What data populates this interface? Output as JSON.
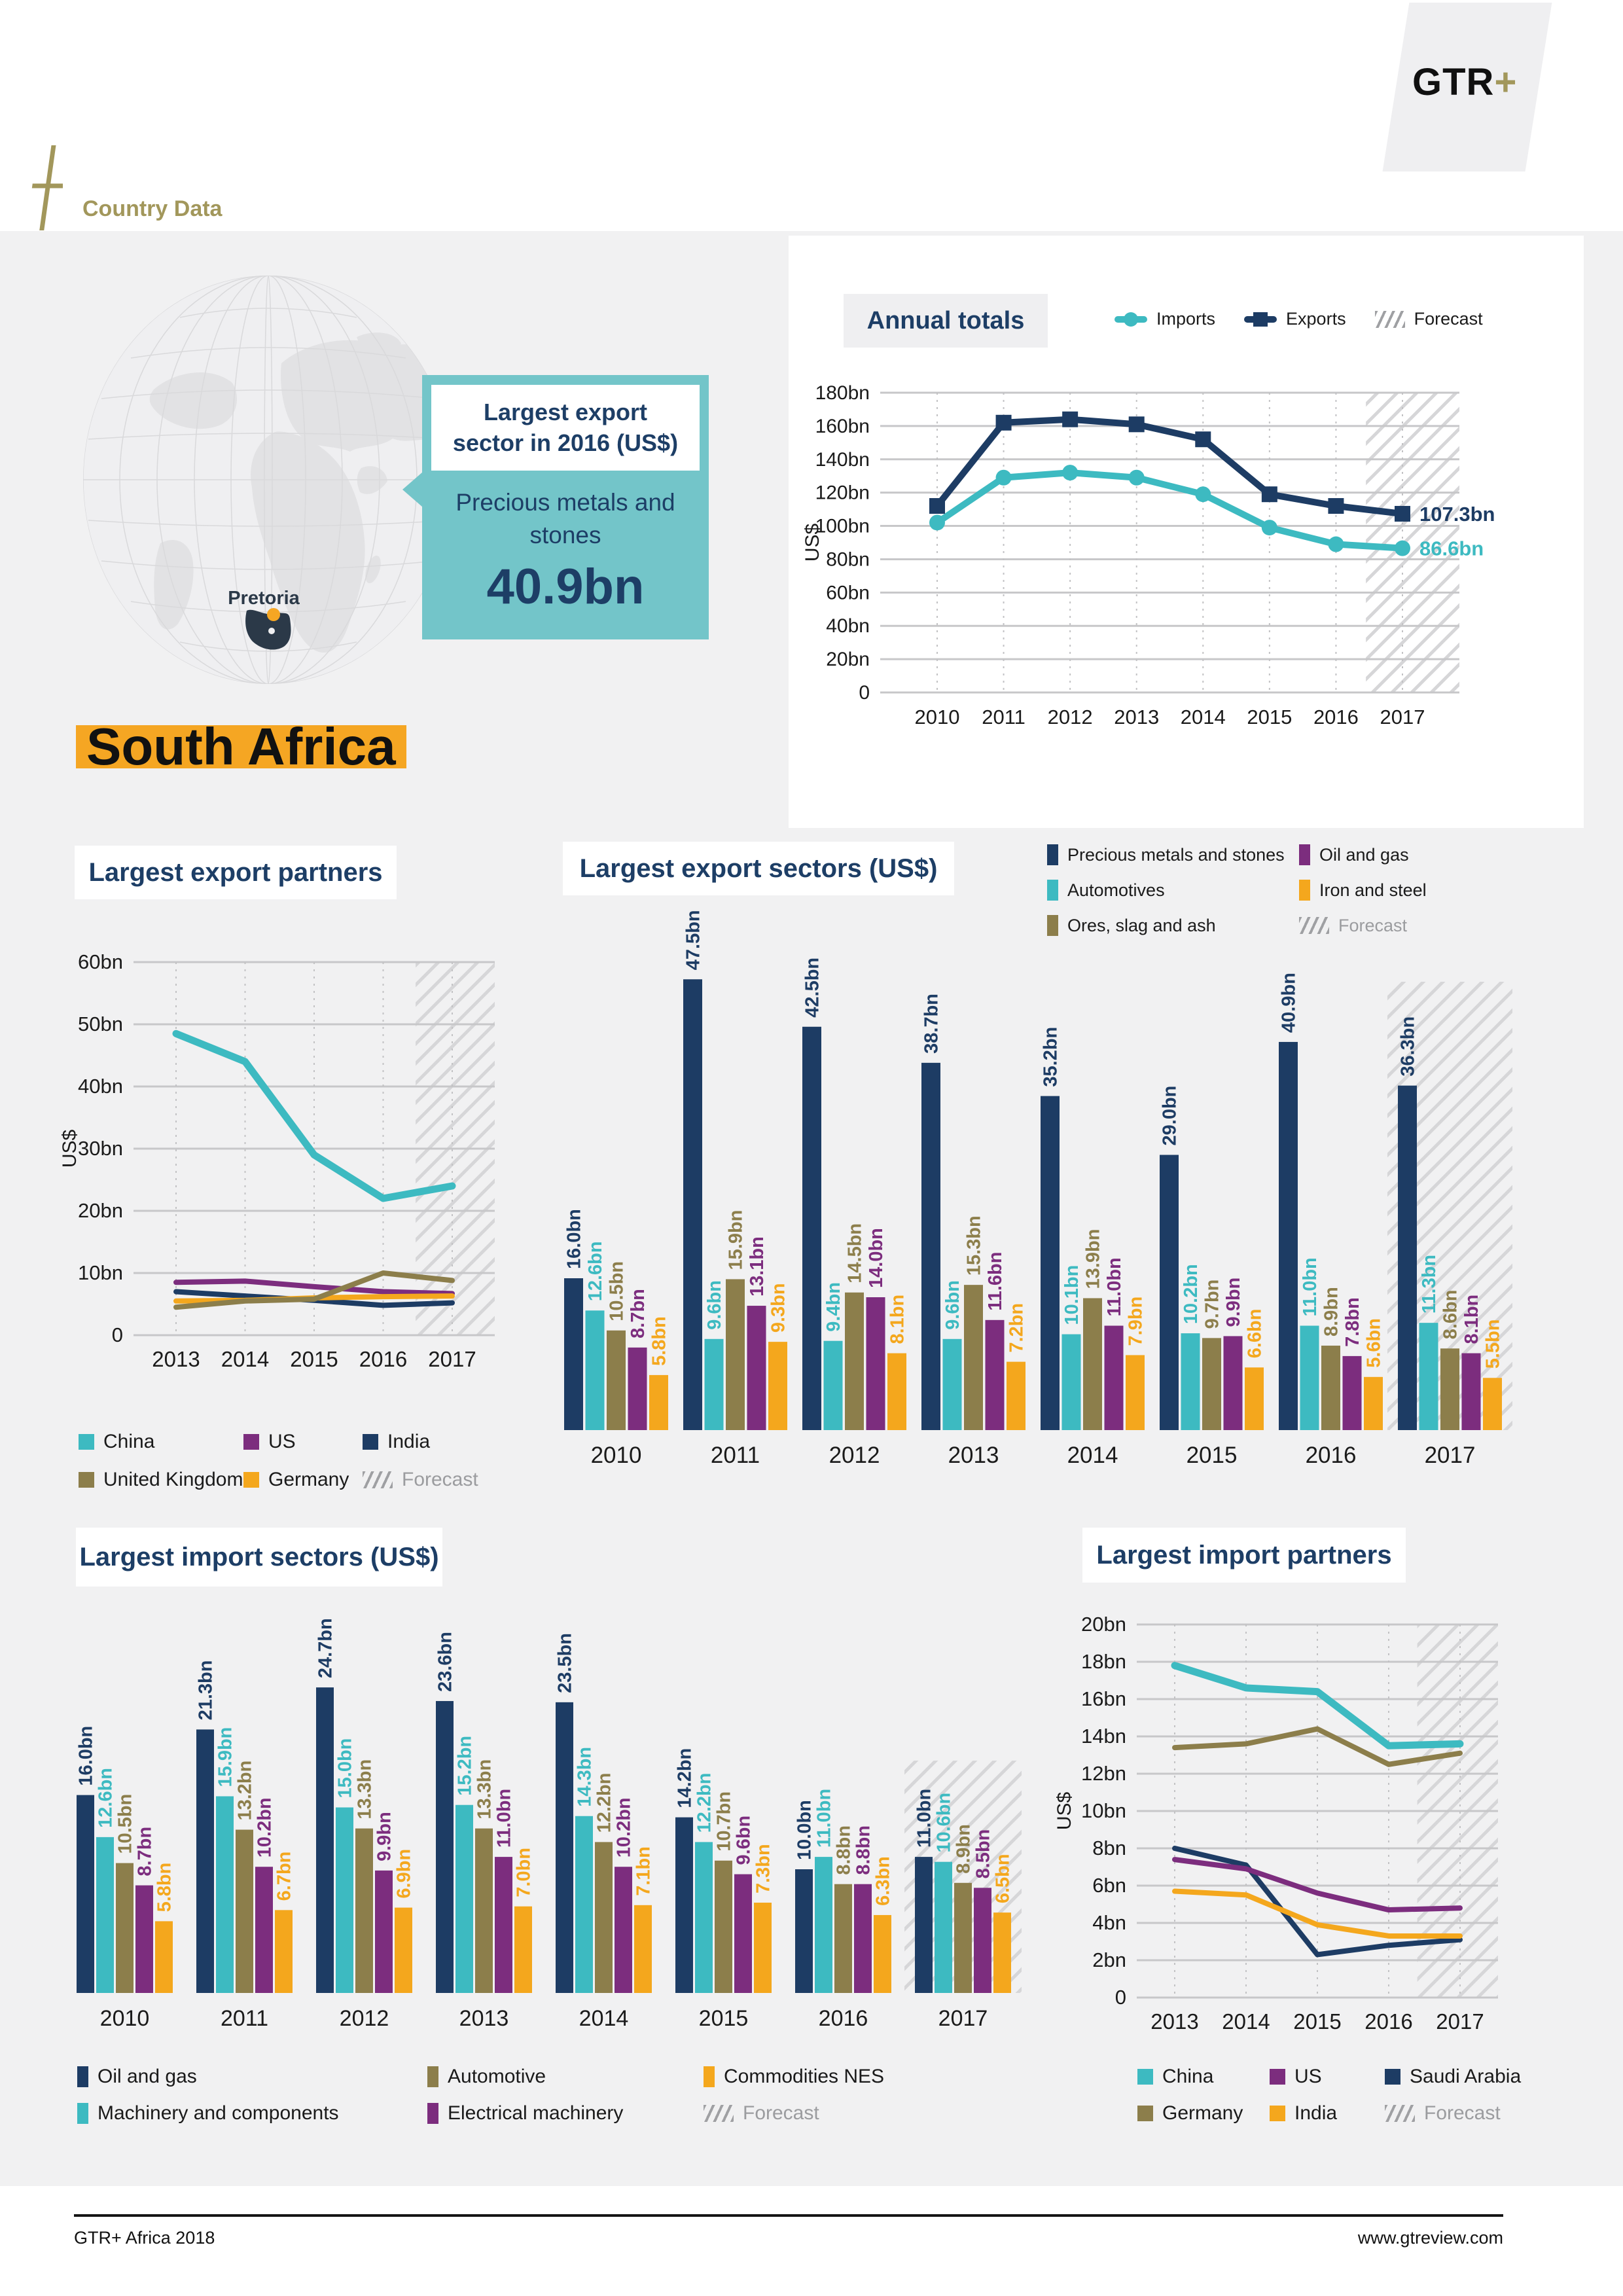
{
  "header": {
    "breadcrumb": "Country Data",
    "logo_gtr": "GTR",
    "logo_plus": "+"
  },
  "map": {
    "city": "Pretoria"
  },
  "callout": {
    "title": "Largest export sector in 2016 (US$)",
    "sector": "Precious metals and stones",
    "value": "40.9bn"
  },
  "country_title": "South Africa",
  "footer": {
    "left": "GTR+ Africa 2018",
    "right": "www.gtreview.com"
  },
  "colors": {
    "navy": "#1d3c64",
    "teal": "#3dbac1",
    "olive": "#8c7e4b",
    "purple": "#7c2d7e",
    "orange": "#f4a71d",
    "gold": "#a2975b",
    "callout_teal": "#73c5c9",
    "highlight": "#f5a623",
    "page_gray": "#f1f1f2",
    "country_shape": "#2b3948"
  },
  "chart_data": [
    {
      "id": "annual_totals",
      "type": "line",
      "title": "Annual totals",
      "ylabel": "US$",
      "x": [
        "2010",
        "2011",
        "2012",
        "2013",
        "2014",
        "2015",
        "2016",
        "2017"
      ],
      "ylim": [
        0,
        180
      ],
      "ystep": 20,
      "tick_suffix": "bn",
      "forecast_from": 6.45,
      "series": [
        {
          "name": "Imports",
          "color": "#3dbac1",
          "marker": "circle",
          "values": [
            102,
            129,
            132,
            129,
            119,
            99,
            89,
            86.6
          ],
          "end_label": "86.6bn"
        },
        {
          "name": "Exports",
          "color": "#1d3c64",
          "marker": "square",
          "values": [
            112,
            162,
            164,
            161,
            152,
            119,
            112,
            107.3
          ],
          "end_label": "107.3bn"
        }
      ],
      "legend": [
        {
          "label": "Imports",
          "color": "#3dbac1",
          "marker": "circle"
        },
        {
          "label": "Exports",
          "color": "#1d3c64",
          "marker": "square"
        },
        {
          "label": "Forecast",
          "hatch": true,
          "muted": false
        }
      ]
    },
    {
      "id": "export_partners",
      "type": "line",
      "title": "Largest export partners",
      "ylabel": "US$",
      "x": [
        "2013",
        "2014",
        "2015",
        "2016",
        "2017"
      ],
      "ylim": [
        0,
        60
      ],
      "ystep": 10,
      "tick_suffix": "bn",
      "forecast_from": 3.47,
      "series": [
        {
          "name": "US",
          "color": "#7c2d7e",
          "values": [
            8.5,
            8.7,
            7.8,
            7.0,
            6.7
          ]
        },
        {
          "name": "India",
          "color": "#1d3c64",
          "values": [
            7.0,
            6.3,
            5.6,
            4.8,
            5.2
          ]
        },
        {
          "name": "Germany",
          "color": "#f4a71d",
          "values": [
            5.5,
            5.6,
            6.0,
            6.2,
            6.3
          ]
        },
        {
          "name": "United Kingdom",
          "color": "#8c7e4b",
          "values": [
            4.5,
            5.5,
            5.8,
            10.0,
            8.8
          ]
        },
        {
          "name": "China",
          "color": "#3dbac1",
          "values": [
            48.5,
            44.0,
            29.0,
            22.0,
            24.0
          ]
        }
      ],
      "legend": [
        {
          "label": "China",
          "color": "#3dbac1"
        },
        {
          "label": "US",
          "color": "#7c2d7e"
        },
        {
          "label": "India",
          "color": "#1d3c64"
        },
        {
          "label": "United Kingdom",
          "color": "#8c7e4b"
        },
        {
          "label": "Germany",
          "color": "#f4a71d"
        },
        {
          "label": "Forecast",
          "hatch": true,
          "muted": true
        }
      ]
    },
    {
      "id": "export_sectors",
      "type": "bar",
      "title": "Largest export sectors (US$)",
      "unit": "bn",
      "x": [
        "2010",
        "2011",
        "2012",
        "2013",
        "2014",
        "2015",
        "2016",
        "2017"
      ],
      "forecast_group": 7,
      "series": [
        {
          "name": "Precious metals and stones",
          "color": "#1d3c64",
          "values": [
            16.0,
            47.5,
            42.5,
            38.7,
            35.2,
            29.0,
            40.9,
            36.3
          ]
        },
        {
          "name": "Automotives",
          "color": "#3dbac1",
          "values": [
            12.6,
            9.6,
            9.4,
            9.6,
            10.1,
            10.2,
            11.0,
            11.3
          ]
        },
        {
          "name": "Ores, slag and ash",
          "color": "#8c7e4b",
          "values": [
            10.5,
            15.9,
            14.5,
            15.3,
            13.9,
            9.7,
            8.9,
            8.6
          ]
        },
        {
          "name": "Oil and gas",
          "color": "#7c2d7e",
          "values": [
            8.7,
            13.1,
            14.0,
            11.6,
            11.0,
            9.9,
            7.8,
            8.1
          ]
        },
        {
          "name": "Iron and steel",
          "color": "#f4a71d",
          "values": [
            5.8,
            9.3,
            8.1,
            7.2,
            7.9,
            6.6,
            5.6,
            5.5
          ]
        }
      ],
      "legend": [
        {
          "label": "Precious metals and stones",
          "color": "#1d3c64"
        },
        {
          "label": "Oil and gas",
          "color": "#7c2d7e"
        },
        {
          "label": "Automotives",
          "color": "#3dbac1"
        },
        {
          "label": "Iron and steel",
          "color": "#f4a71d"
        },
        {
          "label": "Ores, slag and ash",
          "color": "#8c7e4b"
        },
        {
          "label": "Forecast",
          "hatch": true,
          "muted": true
        }
      ]
    },
    {
      "id": "import_sectors",
      "type": "bar",
      "title": "Largest import sectors (US$)",
      "unit": "bn",
      "x": [
        "2010",
        "2011",
        "2012",
        "2013",
        "2014",
        "2015",
        "2016",
        "2017"
      ],
      "forecast_group": 7,
      "series": [
        {
          "name": "Oil and gas",
          "color": "#1d3c64",
          "values": [
            16.0,
            21.3,
            24.7,
            23.6,
            23.5,
            14.2,
            10.0,
            11.0
          ]
        },
        {
          "name": "Machinery and components",
          "color": "#3dbac1",
          "values": [
            12.6,
            15.9,
            15.0,
            15.2,
            14.3,
            12.2,
            11.0,
            10.6
          ]
        },
        {
          "name": "Automotive",
          "color": "#8c7e4b",
          "values": [
            10.5,
            13.2,
            13.3,
            13.3,
            12.2,
            10.7,
            8.8,
            8.9
          ]
        },
        {
          "name": "Electrical machinery",
          "color": "#7c2d7e",
          "values": [
            8.7,
            10.2,
            9.9,
            11.0,
            10.2,
            9.6,
            8.8,
            8.5
          ]
        },
        {
          "name": "Commodities NES",
          "color": "#f4a71d",
          "values": [
            5.8,
            6.7,
            6.9,
            7.0,
            7.1,
            7.3,
            6.3,
            6.5
          ]
        }
      ],
      "legend": [
        {
          "label": "Oil and gas",
          "color": "#1d3c64"
        },
        {
          "label": "Automotive",
          "color": "#8c7e4b"
        },
        {
          "label": "Commodities NES",
          "color": "#f4a71d"
        },
        {
          "label": "Machinery and components",
          "color": "#3dbac1"
        },
        {
          "label": "Electrical machinery",
          "color": "#7c2d7e"
        },
        {
          "label": "Forecast",
          "hatch": true,
          "muted": true
        }
      ]
    },
    {
      "id": "import_partners",
      "type": "line",
      "title": "Largest import partners",
      "ylabel": "US$",
      "x": [
        "2013",
        "2014",
        "2015",
        "2016",
        "2017"
      ],
      "ylim": [
        0,
        20
      ],
      "ystep": 2,
      "tick_suffix": "bn",
      "forecast_from": 3.4,
      "series": [
        {
          "name": "Saudi Arabia",
          "color": "#1d3c64",
          "values": [
            8.0,
            7.1,
            2.3,
            2.8,
            3.1
          ]
        },
        {
          "name": "US",
          "color": "#7c2d7e",
          "values": [
            7.4,
            6.9,
            5.6,
            4.7,
            4.8
          ]
        },
        {
          "name": "India",
          "color": "#f4a71d",
          "values": [
            5.7,
            5.5,
            3.9,
            3.3,
            3.3
          ]
        },
        {
          "name": "Germany",
          "color": "#8c7e4b",
          "values": [
            13.4,
            13.6,
            14.4,
            12.5,
            13.1
          ]
        },
        {
          "name": "China",
          "color": "#3dbac1",
          "values": [
            17.8,
            16.6,
            16.4,
            13.5,
            13.6
          ]
        }
      ],
      "legend": [
        {
          "label": "China",
          "color": "#3dbac1"
        },
        {
          "label": "US",
          "color": "#7c2d7e"
        },
        {
          "label": "Saudi Arabia",
          "color": "#1d3c64"
        },
        {
          "label": "Germany",
          "color": "#8c7e4b"
        },
        {
          "label": "India",
          "color": "#f4a71d"
        },
        {
          "label": "Forecast",
          "hatch": true,
          "muted": true
        }
      ]
    }
  ]
}
